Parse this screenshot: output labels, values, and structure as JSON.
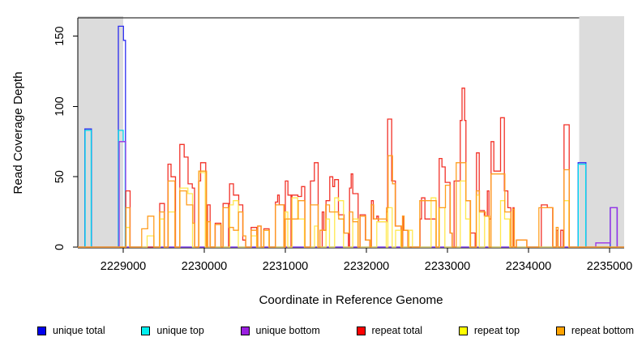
{
  "chart_data": {
    "type": "line",
    "title": "",
    "xlabel": "Coordinate in Reference Genome",
    "ylabel": "Read Coverage Depth",
    "xlim": [
      2228440,
      2235180
    ],
    "ylim": [
      0,
      163
    ],
    "grid": false,
    "x_ticks": [
      2229000,
      2230000,
      2231000,
      2232000,
      2233000,
      2234000,
      2235000
    ],
    "x_tick_labels": [
      "2229000",
      "2230000",
      "2231000",
      "2232000",
      "2233000",
      "2234000",
      "2235000"
    ],
    "y_ticks": [
      0,
      50,
      100,
      150
    ],
    "y_tick_labels": [
      "0",
      "50",
      "100",
      "150"
    ],
    "shade_color": "#dcdcdc",
    "shaded_regions": [
      {
        "x0": 2228440,
        "x1": 2229000
      },
      {
        "x0": 2234625,
        "x1": 2235180
      }
    ],
    "series": [
      {
        "name": "unique total",
        "color": "#2b2bf0",
        "points": [
          [
            2228440,
            0
          ],
          [
            2228527,
            84
          ],
          [
            2228608,
            0
          ],
          [
            2228940,
            157
          ],
          [
            2229003,
            147
          ],
          [
            2229028,
            0
          ],
          [
            2234612,
            60
          ],
          [
            2234708,
            0
          ],
          [
            2235008,
            28
          ],
          [
            2235093,
            0
          ],
          [
            2235180,
            0
          ]
        ]
      },
      {
        "name": "unique top",
        "color": "#00d9ec",
        "points": [
          [
            2228440,
            0
          ],
          [
            2228530,
            83
          ],
          [
            2228605,
            0
          ],
          [
            2228942,
            83
          ],
          [
            2229000,
            75
          ],
          [
            2229024,
            0
          ],
          [
            2234614,
            59
          ],
          [
            2234706,
            0
          ],
          [
            2235180,
            0
          ]
        ]
      },
      {
        "name": "unique bottom",
        "color": "#9a30e6",
        "points": [
          [
            2228440,
            0
          ],
          [
            2228950,
            75
          ],
          [
            2229030,
            0
          ],
          [
            2234830,
            3
          ],
          [
            2235010,
            28
          ],
          [
            2235095,
            0
          ],
          [
            2235180,
            0
          ]
        ]
      },
      {
        "name": "repeat total",
        "color": "#f23228",
        "points": [
          [
            2228440,
            0
          ],
          [
            2229032,
            40
          ],
          [
            2229085,
            0
          ],
          [
            2229450,
            31
          ],
          [
            2229508,
            0
          ],
          [
            2229552,
            59
          ],
          [
            2229590,
            50
          ],
          [
            2229645,
            0
          ],
          [
            2229698,
            73
          ],
          [
            2229752,
            64
          ],
          [
            2229800,
            45
          ],
          [
            2229852,
            42
          ],
          [
            2229880,
            0
          ],
          [
            2229930,
            47
          ],
          [
            2229955,
            60
          ],
          [
            2230018,
            0
          ],
          [
            2230040,
            30
          ],
          [
            2230072,
            0
          ],
          [
            2230135,
            17
          ],
          [
            2230205,
            0
          ],
          [
            2230232,
            31
          ],
          [
            2230300,
            0
          ],
          [
            2230312,
            45
          ],
          [
            2230360,
            37
          ],
          [
            2230425,
            30
          ],
          [
            2230475,
            5
          ],
          [
            2230510,
            0
          ],
          [
            2230578,
            14
          ],
          [
            2230648,
            0
          ],
          [
            2230660,
            15
          ],
          [
            2230700,
            0
          ],
          [
            2230735,
            13
          ],
          [
            2230800,
            0
          ],
          [
            2230878,
            32
          ],
          [
            2230905,
            37
          ],
          [
            2230925,
            30
          ],
          [
            2230985,
            0
          ],
          [
            2231000,
            47
          ],
          [
            2231032,
            37
          ],
          [
            2231070,
            0
          ],
          [
            2231082,
            37
          ],
          [
            2231155,
            36
          ],
          [
            2231200,
            43
          ],
          [
            2231240,
            0
          ],
          [
            2231310,
            47
          ],
          [
            2231358,
            60
          ],
          [
            2231405,
            0
          ],
          [
            2231455,
            25
          ],
          [
            2231475,
            12
          ],
          [
            2231502,
            33
          ],
          [
            2231548,
            50
          ],
          [
            2231585,
            43
          ],
          [
            2231608,
            48
          ],
          [
            2231655,
            23
          ],
          [
            2231725,
            10
          ],
          [
            2231778,
            0
          ],
          [
            2231792,
            42
          ],
          [
            2231812,
            52
          ],
          [
            2231832,
            38
          ],
          [
            2231898,
            0
          ],
          [
            2231922,
            23
          ],
          [
            2231988,
            5
          ],
          [
            2232042,
            0
          ],
          [
            2232062,
            33
          ],
          [
            2232085,
            20
          ],
          [
            2232128,
            22
          ],
          [
            2232148,
            18
          ],
          [
            2232250,
            25
          ],
          [
            2232262,
            91
          ],
          [
            2232312,
            47
          ],
          [
            2232358,
            15
          ],
          [
            2232428,
            0
          ],
          [
            2232448,
            22
          ],
          [
            2232462,
            12
          ],
          [
            2232512,
            0
          ],
          [
            2232662,
            20
          ],
          [
            2232680,
            35
          ],
          [
            2232722,
            20
          ],
          [
            2232858,
            0
          ],
          [
            2232898,
            63
          ],
          [
            2232932,
            57
          ],
          [
            2232972,
            46
          ],
          [
            2233032,
            10
          ],
          [
            2233058,
            0
          ],
          [
            2233082,
            47
          ],
          [
            2233158,
            90
          ],
          [
            2233180,
            113
          ],
          [
            2233212,
            90
          ],
          [
            2233228,
            33
          ],
          [
            2233282,
            10
          ],
          [
            2233342,
            0
          ],
          [
            2233358,
            67
          ],
          [
            2233392,
            26
          ],
          [
            2233455,
            22
          ],
          [
            2233492,
            40
          ],
          [
            2233512,
            20
          ],
          [
            2233538,
            75
          ],
          [
            2233572,
            54
          ],
          [
            2233655,
            92
          ],
          [
            2233702,
            40
          ],
          [
            2233745,
            28
          ],
          [
            2233782,
            0
          ],
          [
            2233808,
            28
          ],
          [
            2233822,
            0
          ],
          [
            2233850,
            5
          ],
          [
            2233980,
            0
          ],
          [
            2234158,
            30
          ],
          [
            2234232,
            28
          ],
          [
            2234298,
            0
          ],
          [
            2234345,
            12
          ],
          [
            2234362,
            0
          ],
          [
            2234398,
            12
          ],
          [
            2234428,
            0
          ],
          [
            2234438,
            87
          ],
          [
            2234502,
            0
          ],
          [
            2235180,
            0
          ]
        ]
      },
      {
        "name": "repeat top",
        "color": "#ffe84d",
        "points": [
          [
            2228440,
            0
          ],
          [
            2229035,
            14
          ],
          [
            2229080,
            0
          ],
          [
            2229295,
            8
          ],
          [
            2229380,
            0
          ],
          [
            2229455,
            20
          ],
          [
            2229505,
            0
          ],
          [
            2229555,
            25
          ],
          [
            2229640,
            0
          ],
          [
            2229700,
            42
          ],
          [
            2229798,
            38
          ],
          [
            2229855,
            0
          ],
          [
            2229935,
            53
          ],
          [
            2230012,
            0
          ],
          [
            2230315,
            30
          ],
          [
            2230358,
            33
          ],
          [
            2230420,
            0
          ],
          [
            2230580,
            8
          ],
          [
            2230645,
            0
          ],
          [
            2230735,
            12
          ],
          [
            2230798,
            0
          ],
          [
            2230998,
            25
          ],
          [
            2231030,
            0
          ],
          [
            2231082,
            35
          ],
          [
            2231152,
            20
          ],
          [
            2231235,
            0
          ],
          [
            2231360,
            15
          ],
          [
            2231400,
            0
          ],
          [
            2231502,
            20
          ],
          [
            2231545,
            0
          ],
          [
            2231608,
            35
          ],
          [
            2231655,
            33
          ],
          [
            2231718,
            0
          ],
          [
            2231832,
            20
          ],
          [
            2231895,
            0
          ],
          [
            2232128,
            18
          ],
          [
            2232245,
            0
          ],
          [
            2232265,
            28
          ],
          [
            2232318,
            0
          ],
          [
            2232360,
            12
          ],
          [
            2232425,
            0
          ],
          [
            2232528,
            12
          ],
          [
            2232568,
            0
          ],
          [
            2232798,
            35
          ],
          [
            2232858,
            0
          ],
          [
            2232902,
            28
          ],
          [
            2232968,
            0
          ],
          [
            2233158,
            47
          ],
          [
            2233225,
            20
          ],
          [
            2233275,
            0
          ],
          [
            2233358,
            37
          ],
          [
            2233392,
            0
          ],
          [
            2233458,
            22
          ],
          [
            2233512,
            0
          ],
          [
            2233655,
            33
          ],
          [
            2233705,
            20
          ],
          [
            2233768,
            0
          ],
          [
            2234438,
            33
          ],
          [
            2234498,
            0
          ],
          [
            2235180,
            0
          ]
        ]
      },
      {
        "name": "repeat bottom",
        "color": "#ff9d1f",
        "points": [
          [
            2228440,
            0
          ],
          [
            2229035,
            28
          ],
          [
            2229082,
            0
          ],
          [
            2229228,
            13
          ],
          [
            2229302,
            22
          ],
          [
            2229378,
            0
          ],
          [
            2229448,
            25
          ],
          [
            2229505,
            0
          ],
          [
            2229555,
            47
          ],
          [
            2229638,
            0
          ],
          [
            2229698,
            40
          ],
          [
            2229782,
            30
          ],
          [
            2229858,
            17
          ],
          [
            2229882,
            0
          ],
          [
            2229932,
            54
          ],
          [
            2230028,
            0
          ],
          [
            2230042,
            18
          ],
          [
            2230075,
            0
          ],
          [
            2230132,
            16
          ],
          [
            2230208,
            0
          ],
          [
            2230230,
            28
          ],
          [
            2230302,
            14
          ],
          [
            2230360,
            12
          ],
          [
            2230422,
            25
          ],
          [
            2230478,
            8
          ],
          [
            2230512,
            0
          ],
          [
            2230578,
            12
          ],
          [
            2230650,
            0
          ],
          [
            2230658,
            15
          ],
          [
            2230702,
            0
          ],
          [
            2230732,
            12
          ],
          [
            2230802,
            0
          ],
          [
            2230878,
            30
          ],
          [
            2230982,
            0
          ],
          [
            2230998,
            20
          ],
          [
            2231160,
            33
          ],
          [
            2231242,
            0
          ],
          [
            2231308,
            30
          ],
          [
            2231405,
            0
          ],
          [
            2231428,
            12
          ],
          [
            2231498,
            30
          ],
          [
            2231545,
            25
          ],
          [
            2231605,
            25
          ],
          [
            2231658,
            20
          ],
          [
            2231722,
            10
          ],
          [
            2231788,
            25
          ],
          [
            2231832,
            18
          ],
          [
            2231898,
            0
          ],
          [
            2231920,
            22
          ],
          [
            2231992,
            5
          ],
          [
            2232045,
            0
          ],
          [
            2232058,
            30
          ],
          [
            2232090,
            20
          ],
          [
            2232212,
            20
          ],
          [
            2232248,
            28
          ],
          [
            2232268,
            65
          ],
          [
            2232322,
            45
          ],
          [
            2232355,
            15
          ],
          [
            2232432,
            0
          ],
          [
            2232445,
            22
          ],
          [
            2232465,
            12
          ],
          [
            2232515,
            0
          ],
          [
            2232658,
            33
          ],
          [
            2232862,
            0
          ],
          [
            2232895,
            28
          ],
          [
            2232975,
            44
          ],
          [
            2233035,
            10
          ],
          [
            2233060,
            0
          ],
          [
            2233108,
            60
          ],
          [
            2233228,
            33
          ],
          [
            2233285,
            0
          ],
          [
            2233355,
            40
          ],
          [
            2233395,
            25
          ],
          [
            2233468,
            22
          ],
          [
            2233518,
            0
          ],
          [
            2233538,
            52
          ],
          [
            2233708,
            25
          ],
          [
            2233782,
            0
          ],
          [
            2233805,
            27
          ],
          [
            2233825,
            0
          ],
          [
            2233852,
            5
          ],
          [
            2233978,
            0
          ],
          [
            2234128,
            28
          ],
          [
            2234302,
            0
          ],
          [
            2234342,
            14
          ],
          [
            2234365,
            0
          ],
          [
            2234438,
            55
          ],
          [
            2234502,
            0
          ],
          [
            2235180,
            0
          ]
        ]
      }
    ],
    "legend_position": "bottom"
  },
  "legend": {
    "items": [
      {
        "label": "unique total",
        "color": "#0000ee"
      },
      {
        "label": "unique top",
        "color": "#00eeee"
      },
      {
        "label": "unique bottom",
        "color": "#9a1fe0"
      },
      {
        "label": "repeat total",
        "color": "#ff0000"
      },
      {
        "label": "repeat top",
        "color": "#ffff00"
      },
      {
        "label": "repeat bottom",
        "color": "#ffa300"
      }
    ]
  }
}
